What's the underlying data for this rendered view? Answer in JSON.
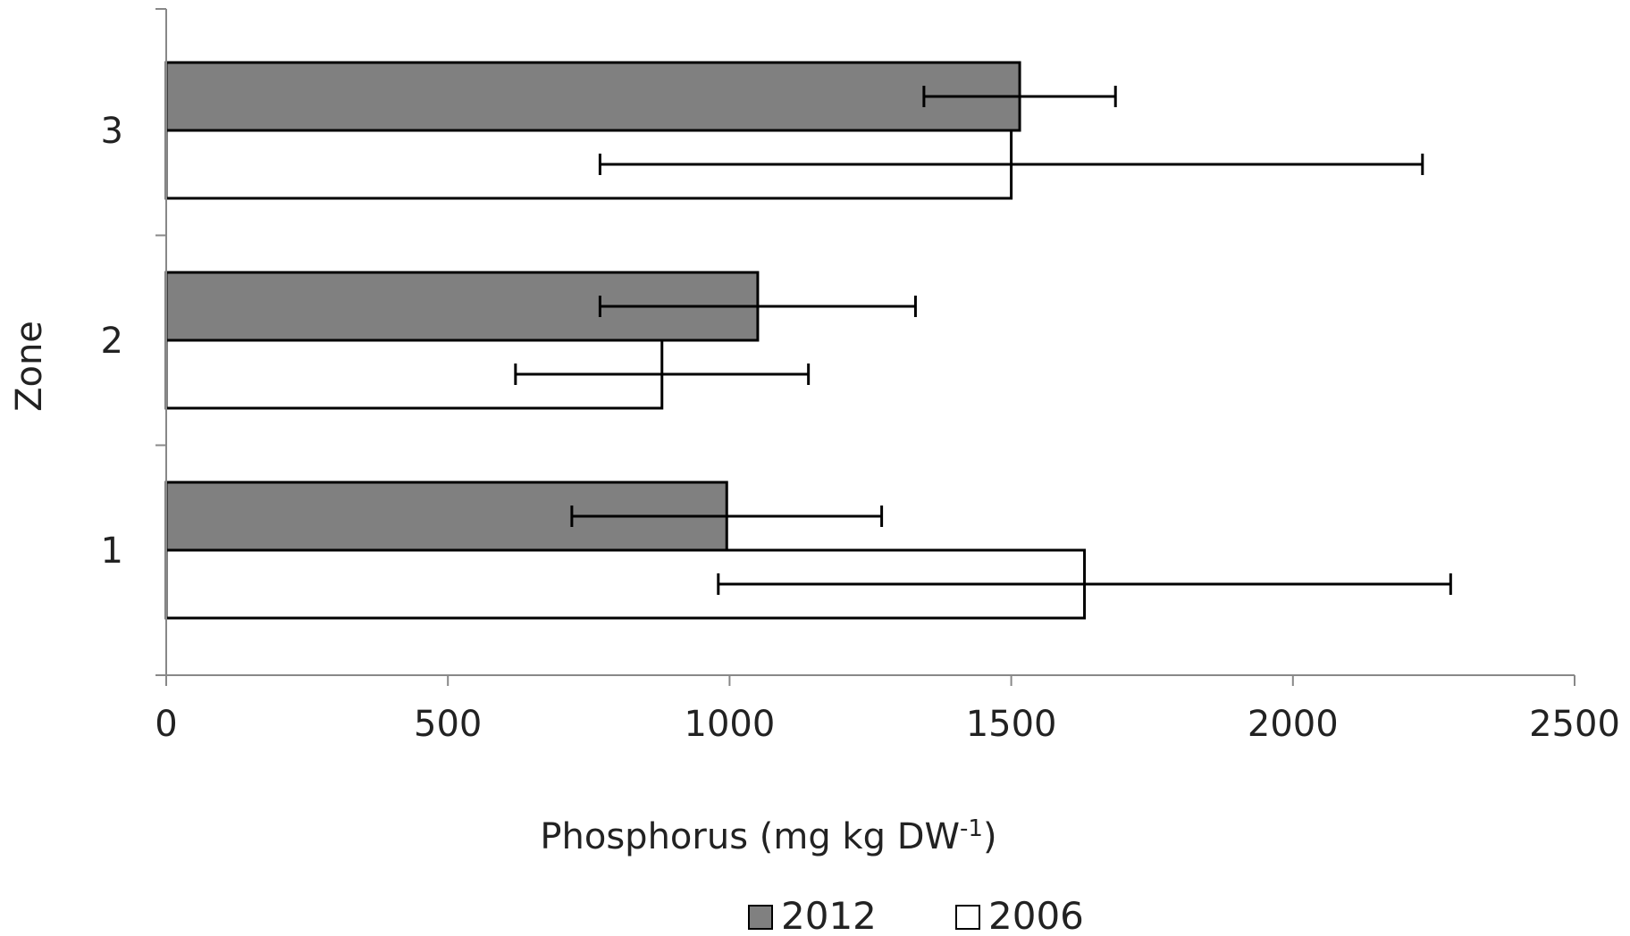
{
  "chart_data": {
    "type": "bar",
    "orientation": "horizontal",
    "categories": [
      "1",
      "2",
      "3"
    ],
    "series": [
      {
        "name": "2012",
        "values": [
          995,
          1050,
          1515
        ],
        "error": [
          275,
          280,
          170
        ],
        "color": "#808080"
      },
      {
        "name": "2006",
        "values": [
          1630,
          880,
          1500
        ],
        "error": [
          650,
          260,
          730
        ],
        "color": "#ffffff"
      }
    ],
    "title": "",
    "xlabel": "Phosphorus (mg kg DW",
    "xlabel_sup": "-1",
    "xlabel_suffix": ")",
    "ylabel": "Zone",
    "xlim": [
      0,
      2500
    ],
    "x_ticks": [
      "0",
      "500",
      "1000",
      "1500",
      "2000",
      "2500"
    ],
    "grid": false,
    "legend_position": "bottom"
  }
}
